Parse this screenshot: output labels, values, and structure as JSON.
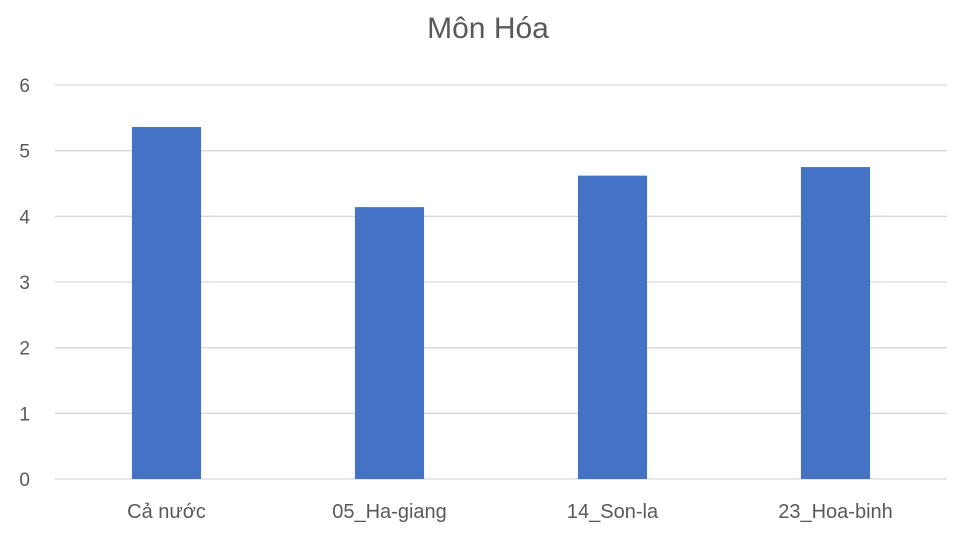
{
  "chart_data": {
    "type": "bar",
    "title": "Môn Hóa",
    "categories": [
      "Cả nước",
      "05_Ha-giang",
      "14_Son-la",
      "23_Hoa-binh"
    ],
    "values": [
      5.36,
      4.14,
      4.62,
      4.75
    ],
    "xlabel": "",
    "ylabel": "",
    "ylim": [
      0,
      6
    ],
    "yticks": [
      "0",
      "1",
      "2",
      "3",
      "4",
      "5",
      "6"
    ],
    "grid": true,
    "legend": "none",
    "bar_color": "#4472C4",
    "grid_color": "#D9D9D9",
    "text_color": "#595959"
  }
}
